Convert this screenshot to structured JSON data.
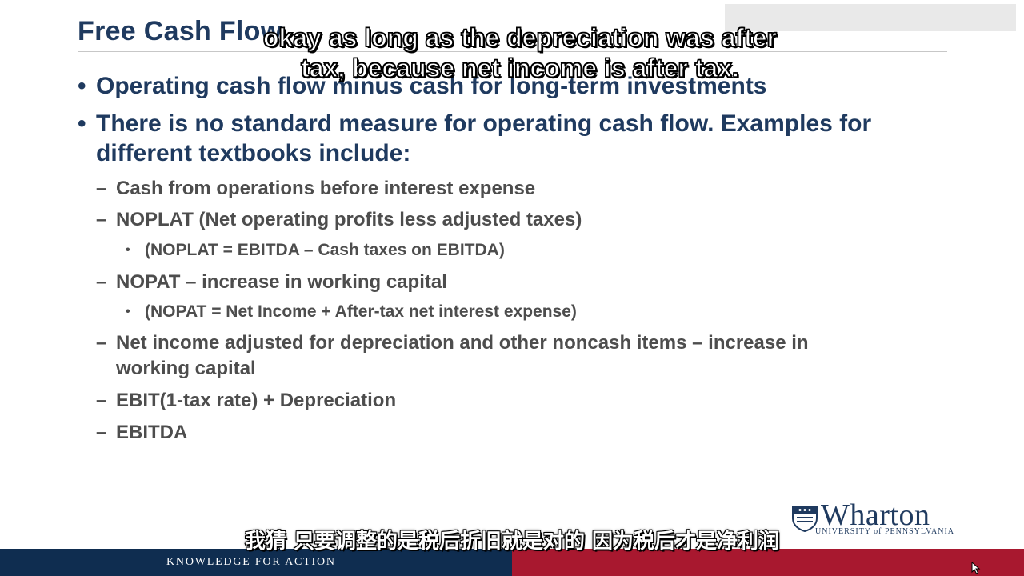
{
  "slide": {
    "title": "Free Cash Flow",
    "bullets": [
      {
        "text": "Operating cash flow minus cash for long-term investments"
      },
      {
        "lines": [
          "There is no standard measure for operating cash flow.  Examples for",
          "different textbooks include:"
        ]
      }
    ],
    "sub_items": [
      {
        "text": "Cash from operations before interest expense"
      },
      {
        "text": "NOPLAT (Net operating profits less adjusted taxes)"
      },
      {
        "text": "(NOPLAT = EBITDA – Cash taxes on EBITDA)"
      },
      {
        "text": "NOPAT – increase in working capital"
      },
      {
        "text": "(NOPAT = Net Income + After-tax net interest expense)"
      },
      {
        "lines": [
          "Net income adjusted for depreciation and other noncash items – increase in",
          "working capital"
        ]
      },
      {
        "text": "EBIT(1-tax rate) + Depreciation"
      },
      {
        "text": "EBITDA"
      }
    ],
    "bullet_glyph": "•",
    "dash_glyph": "–"
  },
  "captions": {
    "english": [
      "okay as long as the depreciation was after",
      "tax, because net income is after tax."
    ],
    "chinese": "我猜 只要调整的是税后折旧就是对的 因为税后才是净利润"
  },
  "branding": {
    "logo_name": "Wharton",
    "logo_subtitle": "UNIVERSITY of PENNSYLVANIA",
    "tagline": "KNOWLEDGE FOR ACTION"
  },
  "colors": {
    "navy": "#1f3a5f",
    "footer_navy": "#0f2d50",
    "footer_red": "#a8182f",
    "body_gray": "#4d4d4d"
  }
}
